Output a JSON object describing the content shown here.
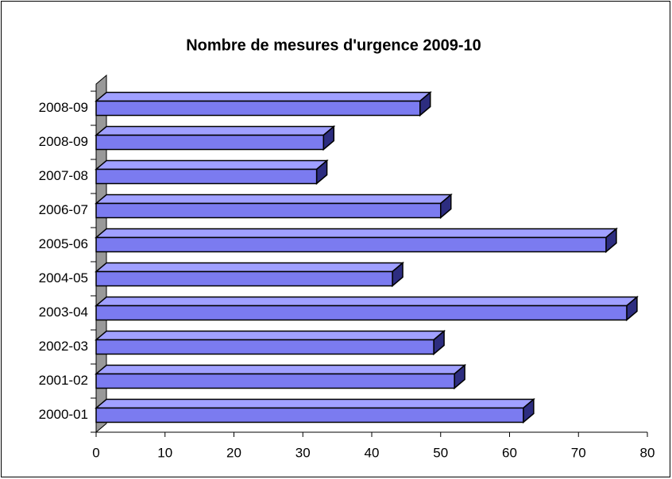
{
  "chart_data": {
    "type": "bar3d_horizontal",
    "title": "Nombre de mesures d'urgence 2009-10",
    "categories": [
      "2000-01",
      "2001-02",
      "2002-03",
      "2003-04",
      "2004-05",
      "2005-06",
      "2006-07",
      "2007-08",
      "2008-09",
      "2008-09"
    ],
    "values": [
      62,
      52,
      49,
      77,
      43,
      74,
      50,
      32,
      33,
      47
    ],
    "color": "#7b7bf0",
    "xlim": [
      0,
      80
    ],
    "xticks": [
      0,
      10,
      20,
      30,
      40,
      50,
      60,
      70,
      80
    ]
  }
}
